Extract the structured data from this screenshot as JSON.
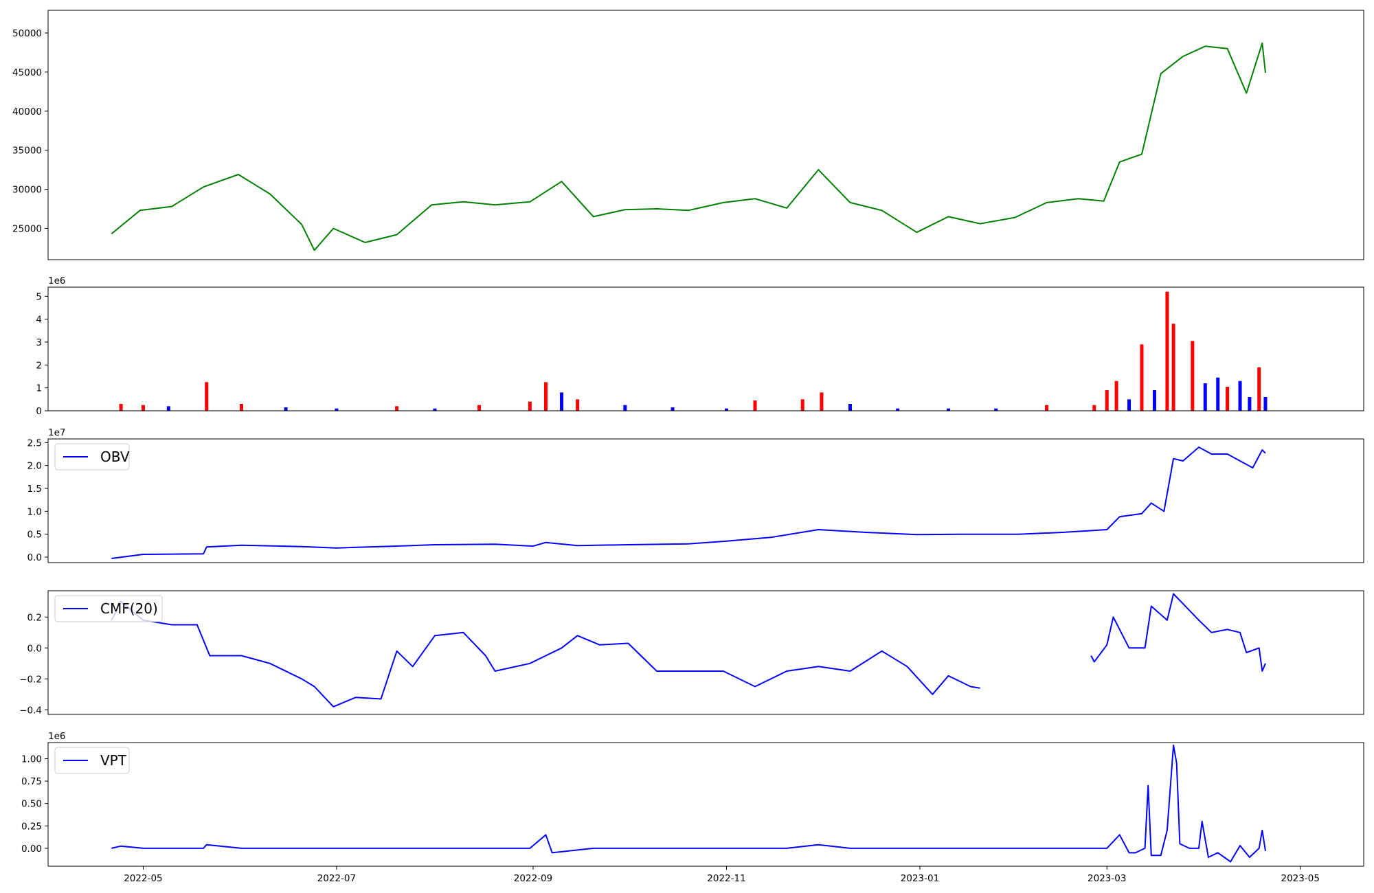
{
  "chart_data": [
    {
      "type": "line",
      "name": "price",
      "color": "#008000",
      "legend": "",
      "ylim": [
        21000,
        52900
      ],
      "yticks": [
        25000,
        30000,
        35000,
        40000,
        45000,
        50000
      ],
      "ytick_labels": [
        "25000",
        "30000",
        "35000",
        "40000",
        "45000",
        "50000"
      ],
      "offset_label": "",
      "x": [
        "2022-04-21",
        "2022-04-30",
        "2022-05-10",
        "2022-05-20",
        "2022-05-31",
        "2022-06-10",
        "2022-06-20",
        "2022-06-24",
        "2022-06-30",
        "2022-07-10",
        "2022-07-20",
        "2022-07-31",
        "2022-08-10",
        "2022-08-20",
        "2022-08-31",
        "2022-09-10",
        "2022-09-20",
        "2022-09-30",
        "2022-10-10",
        "2022-10-20",
        "2022-10-31",
        "2022-11-10",
        "2022-11-20",
        "2022-11-30",
        "2022-12-10",
        "2022-12-20",
        "2022-12-31",
        "2023-01-10",
        "2023-01-20",
        "2023-01-31",
        "2023-02-10",
        "2023-02-20",
        "2023-02-28",
        "2023-03-05",
        "2023-03-12",
        "2023-03-18",
        "2023-03-25",
        "2023-04-01",
        "2023-04-08",
        "2023-04-14",
        "2023-04-19",
        "2023-04-20"
      ],
      "values": [
        24300,
        27300,
        27800,
        30300,
        31900,
        29400,
        25500,
        22200,
        25000,
        23200,
        24200,
        28000,
        28400,
        28000,
        28400,
        31000,
        26500,
        27400,
        27500,
        27300,
        28300,
        28800,
        27600,
        32500,
        28300,
        27300,
        24500,
        26500,
        25600,
        26400,
        28300,
        28800,
        28500,
        33500,
        34500,
        44800,
        47000,
        48300,
        48000,
        42300,
        48700,
        44900
      ]
    },
    {
      "type": "bar",
      "name": "volume",
      "ylim": [
        0,
        5400000
      ],
      "yticks": [
        0,
        1000000,
        2000000,
        3000000,
        4000000,
        5000000
      ],
      "ytick_labels": [
        "0",
        "1",
        "2",
        "3",
        "4",
        "5"
      ],
      "offset_label": "1e6",
      "up_color": "#ff0000",
      "down_color": "#0000ff",
      "x": [
        "2022-04-24",
        "2022-05-01",
        "2022-05-09",
        "2022-05-21",
        "2022-06-01",
        "2022-06-15",
        "2022-07-01",
        "2022-07-20",
        "2022-08-01",
        "2022-08-15",
        "2022-08-31",
        "2022-09-05",
        "2022-09-10",
        "2022-09-15",
        "2022-09-30",
        "2022-10-15",
        "2022-11-01",
        "2022-11-10",
        "2022-11-25",
        "2022-12-01",
        "2022-12-10",
        "2022-12-25",
        "2023-01-10",
        "2023-01-25",
        "2023-02-10",
        "2023-02-25",
        "2023-03-01",
        "2023-03-04",
        "2023-03-08",
        "2023-03-12",
        "2023-03-16",
        "2023-03-20",
        "2023-03-22",
        "2023-03-28",
        "2023-04-01",
        "2023-04-05",
        "2023-04-08",
        "2023-04-12",
        "2023-04-15",
        "2023-04-18",
        "2023-04-20"
      ],
      "values": [
        300000,
        250000,
        200000,
        1250000,
        300000,
        150000,
        100000,
        200000,
        100000,
        250000,
        400000,
        1250000,
        800000,
        500000,
        250000,
        150000,
        100000,
        450000,
        500000,
        800000,
        300000,
        100000,
        100000,
        100000,
        250000,
        250000,
        900000,
        1300000,
        500000,
        2900000,
        900000,
        5200000,
        3800000,
        3050000,
        1200000,
        1450000,
        1050000,
        1300000,
        600000,
        1900000,
        600000
      ],
      "directions": [
        "up",
        "up",
        "down",
        "up",
        "up",
        "down",
        "down",
        "up",
        "down",
        "up",
        "up",
        "up",
        "down",
        "up",
        "down",
        "down",
        "down",
        "up",
        "up",
        "up",
        "down",
        "down",
        "down",
        "down",
        "up",
        "up",
        "up",
        "up",
        "down",
        "up",
        "down",
        "up",
        "up",
        "up",
        "down",
        "down",
        "up",
        "down",
        "down",
        "up",
        "down"
      ]
    },
    {
      "type": "line",
      "name": "OBV",
      "color": "#0000ff",
      "legend": "OBV",
      "ylim": [
        -1200000,
        25800000
      ],
      "yticks": [
        0,
        5000000,
        10000000,
        15000000,
        20000000,
        25000000
      ],
      "ytick_labels": [
        "0.0",
        "0.5",
        "1.0",
        "1.5",
        "2.0",
        "2.5"
      ],
      "offset_label": "1e7",
      "x": [
        "2022-04-21",
        "2022-05-01",
        "2022-05-20",
        "2022-05-21",
        "2022-06-01",
        "2022-06-20",
        "2022-07-01",
        "2022-07-20",
        "2022-08-01",
        "2022-08-20",
        "2022-09-01",
        "2022-09-05",
        "2022-09-15",
        "2022-10-01",
        "2022-10-20",
        "2022-11-01",
        "2022-11-15",
        "2022-11-30",
        "2022-12-15",
        "2022-12-31",
        "2023-01-15",
        "2023-02-01",
        "2023-02-15",
        "2023-03-01",
        "2023-03-05",
        "2023-03-12",
        "2023-03-15",
        "2023-03-19",
        "2023-03-22",
        "2023-03-25",
        "2023-03-30",
        "2023-04-03",
        "2023-04-08",
        "2023-04-12",
        "2023-04-16",
        "2023-04-19",
        "2023-04-20"
      ],
      "values": [
        -300000,
        600000,
        700000,
        2200000,
        2600000,
        2300000,
        2000000,
        2400000,
        2700000,
        2800000,
        2400000,
        3200000,
        2500000,
        2700000,
        2900000,
        3500000,
        4300000,
        6000000,
        5400000,
        4900000,
        5000000,
        5000000,
        5400000,
        6000000,
        8800000,
        9500000,
        11800000,
        10000000,
        21500000,
        21000000,
        24000000,
        22500000,
        22500000,
        21000000,
        19500000,
        23400000,
        22700000
      ]
    },
    {
      "type": "line",
      "name": "CMF(20)",
      "color": "#0000ff",
      "legend": "CMF(20)",
      "ylim": [
        -0.43,
        0.37
      ],
      "yticks": [
        -0.4,
        -0.2,
        0.0,
        0.2
      ],
      "ytick_labels": [
        "−0.4",
        "−0.2",
        "0.0",
        "0.2"
      ],
      "offset_label": "",
      "segments": [
        {
          "x": [
            "2022-04-21",
            "2022-04-24",
            "2022-05-01",
            "2022-05-10",
            "2022-05-18",
            "2022-05-22",
            "2022-06-01",
            "2022-06-10",
            "2022-06-20",
            "2022-06-24",
            "2022-06-30",
            "2022-07-07",
            "2022-07-15",
            "2022-07-20",
            "2022-07-25",
            "2022-08-01",
            "2022-08-10",
            "2022-08-17",
            "2022-08-20",
            "2022-08-31",
            "2022-09-05",
            "2022-09-10",
            "2022-09-15",
            "2022-09-22",
            "2022-10-01",
            "2022-10-10",
            "2022-10-20",
            "2022-10-31",
            "2022-11-10",
            "2022-11-20",
            "2022-11-30",
            "2022-12-10",
            "2022-12-20",
            "2022-12-28",
            "2023-01-05",
            "2023-01-10",
            "2023-01-17",
            "2023-01-20"
          ],
          "values": [
            0.18,
            0.3,
            0.18,
            0.15,
            0.15,
            -0.05,
            -0.05,
            -0.1,
            -0.2,
            -0.25,
            -0.38,
            -0.32,
            -0.33,
            -0.02,
            -0.12,
            0.08,
            0.1,
            -0.05,
            -0.15,
            -0.1,
            -0.05,
            0.0,
            0.08,
            0.02,
            0.03,
            -0.15,
            -0.15,
            -0.15,
            -0.25,
            -0.15,
            -0.12,
            -0.15,
            -0.02,
            -0.12,
            -0.3,
            -0.18,
            -0.25,
            -0.26
          ]
        },
        {
          "x": [
            "2023-02-24",
            "2023-02-25",
            "2023-03-01",
            "2023-03-03",
            "2023-03-08",
            "2023-03-13",
            "2023-03-15",
            "2023-03-20",
            "2023-03-22",
            "2023-03-30",
            "2023-04-03",
            "2023-04-08",
            "2023-04-12",
            "2023-04-14",
            "2023-04-18",
            "2023-04-19",
            "2023-04-20"
          ],
          "values": [
            -0.05,
            -0.09,
            0.02,
            0.2,
            0.0,
            0.0,
            0.27,
            0.18,
            0.35,
            0.18,
            0.1,
            0.12,
            0.1,
            -0.03,
            0.0,
            -0.15,
            -0.1
          ]
        }
      ]
    },
    {
      "type": "line",
      "name": "VPT",
      "color": "#0000ff",
      "legend": "VPT",
      "ylim": [
        -200000,
        1180000
      ],
      "yticks": [
        0,
        250000,
        500000,
        750000,
        1000000
      ],
      "ytick_labels": [
        "0.00",
        "0.25",
        "0.50",
        "0.75",
        "1.00"
      ],
      "offset_label": "1e6",
      "x": [
        "2022-04-21",
        "2022-04-24",
        "2022-05-01",
        "2022-05-10",
        "2022-05-20",
        "2022-05-21",
        "2022-06-01",
        "2022-06-20",
        "2022-07-01",
        "2022-07-20",
        "2022-08-01",
        "2022-08-20",
        "2022-08-31",
        "2022-09-05",
        "2022-09-07",
        "2022-09-20",
        "2022-09-30",
        "2022-10-10",
        "2022-10-20",
        "2022-11-01",
        "2022-11-20",
        "2022-11-30",
        "2022-12-10",
        "2022-12-31",
        "2023-01-15",
        "2023-02-01",
        "2023-02-15",
        "2023-03-01",
        "2023-03-05",
        "2023-03-08",
        "2023-03-10",
        "2023-03-13",
        "2023-03-14",
        "2023-03-15",
        "2023-03-18",
        "2023-03-20",
        "2023-03-22",
        "2023-03-23",
        "2023-03-24",
        "2023-03-27",
        "2023-03-30",
        "2023-03-31",
        "2023-04-02",
        "2023-04-05",
        "2023-04-09",
        "2023-04-12",
        "2023-04-15",
        "2023-04-18",
        "2023-04-19",
        "2023-04-20"
      ],
      "values": [
        0,
        25000,
        0,
        0,
        0,
        40000,
        0,
        0,
        0,
        0,
        0,
        0,
        0,
        150000,
        -50000,
        0,
        0,
        0,
        0,
        0,
        0,
        40000,
        0,
        0,
        0,
        0,
        0,
        0,
        150000,
        -50000,
        -50000,
        0,
        700000,
        -80000,
        -80000,
        200000,
        1150000,
        950000,
        50000,
        0,
        0,
        300000,
        -100000,
        -50000,
        -150000,
        30000,
        -100000,
        0,
        200000,
        -30000
      ]
    }
  ],
  "xaxis": {
    "tick_dates": [
      "2022-05-01",
      "2022-07-01",
      "2022-09-01",
      "2022-11-01",
      "2023-01-01",
      "2023-03-01",
      "2023-05-01"
    ],
    "tick_labels": [
      "2022-05",
      "2022-07",
      "2022-09",
      "2022-11",
      "2023-01",
      "2023-03",
      "2023-05"
    ],
    "range": [
      "2022-04-01",
      "2023-05-21"
    ]
  }
}
